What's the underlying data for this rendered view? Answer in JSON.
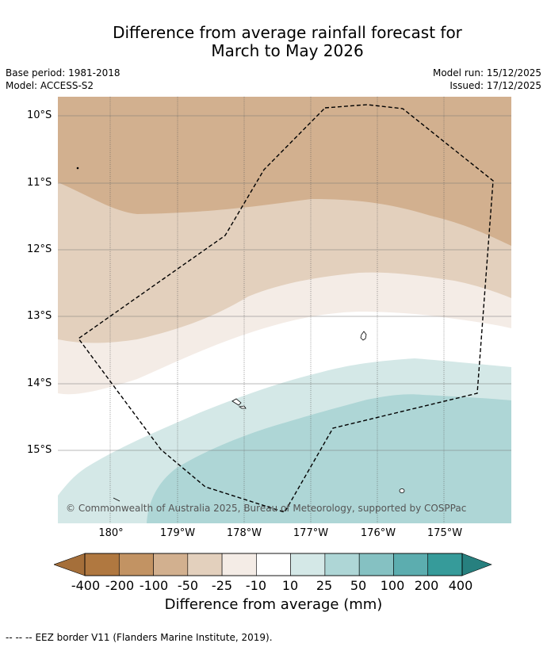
{
  "header": {
    "title_line1": "Difference from average rainfall forecast for",
    "title_line2": "March to May 2026",
    "base_period": "Base period: 1981-2018",
    "model": "Model: ACCESS-S2",
    "model_run": "Model run: 15/12/2025",
    "issued": "Issued: 17/12/2025"
  },
  "map": {
    "latitude_labels": [
      "10°S",
      "11°S",
      "12°S",
      "13°S",
      "14°S",
      "15°S"
    ],
    "longitude_labels": [
      "180°",
      "179°W",
      "178°W",
      "177°W",
      "176°W",
      "175°W"
    ],
    "copyright": "© Commonwealth of Australia 2025, Bureau of Meteorology, supported by COSPPac",
    "colors": {
      "band_-50_-25": "#d2b08f",
      "band_-25_-10": "#e3d0bd",
      "band_-10_10": "#f4ece6",
      "band_neutral": "#ffffff",
      "band_10_25": "#d4e8e7",
      "band_25_50": "#aed6d6"
    }
  },
  "colorbar": {
    "ticks": [
      "-400",
      "-200",
      "-100",
      "-50",
      "-25",
      "-10",
      "10",
      "25",
      "50",
      "100",
      "200",
      "400"
    ],
    "colors": [
      "#a56f3a",
      "#b07840",
      "#c29363",
      "#d2b08f",
      "#e3d0bd",
      "#f4ece6",
      "#ffffff",
      "#d4e8e7",
      "#aed6d6",
      "#85c1c2",
      "#5cadaf",
      "#369b9a",
      "#27807f"
    ],
    "title": "Difference from average (mm)"
  },
  "footer": {
    "legend_symbol": "-- -- --",
    "text": "EEZ border V11 (Flanders Marine Institute, 2019)."
  }
}
